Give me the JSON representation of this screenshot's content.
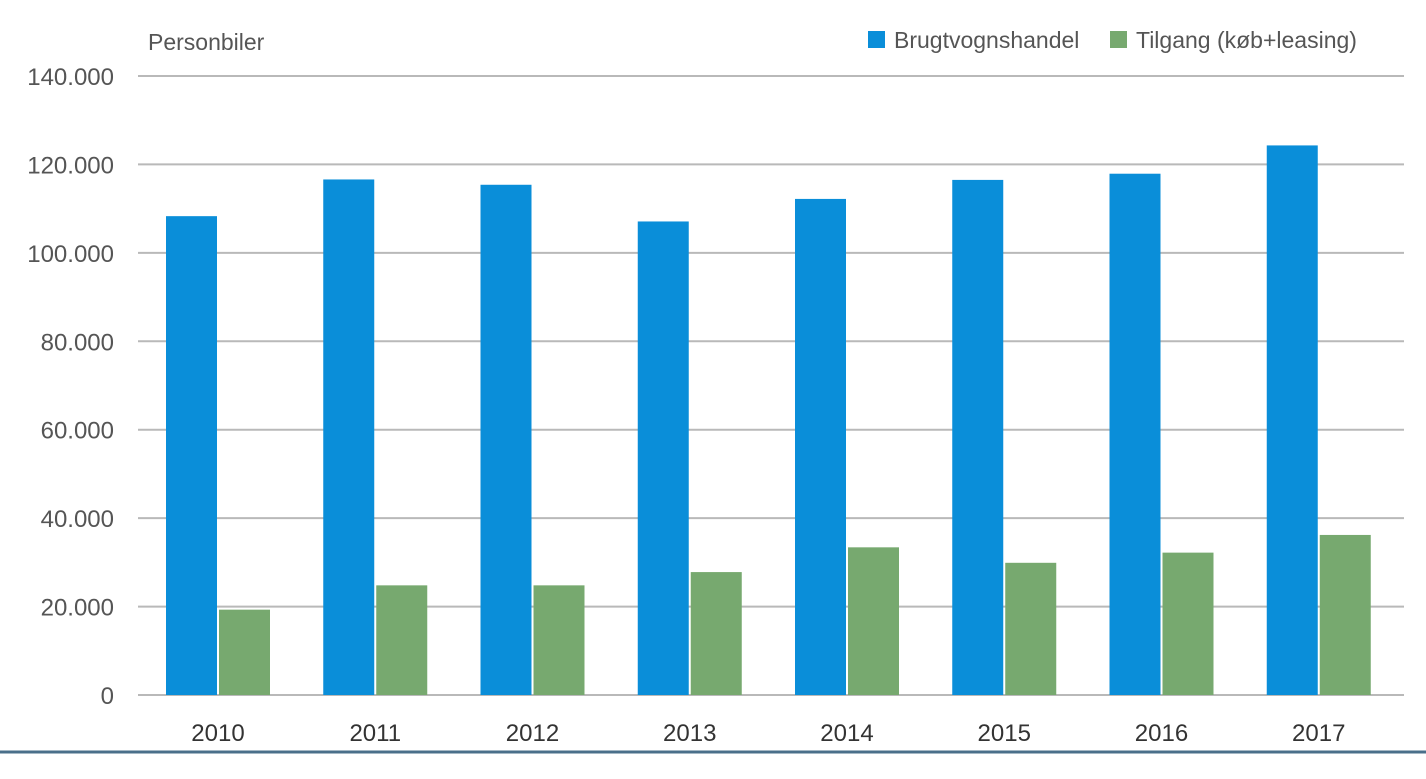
{
  "chart_data": {
    "type": "bar",
    "ylabel": "Personbiler",
    "categories": [
      "2010",
      "2011",
      "2012",
      "2013",
      "2014",
      "2015",
      "2016",
      "2017"
    ],
    "series": [
      {
        "name": "Brugtvognshandel",
        "color": "#0a8ed9",
        "values": [
          108300,
          116600,
          115400,
          107100,
          112200,
          116500,
          117900,
          124300
        ]
      },
      {
        "name": "Tilgang (køb+leasing)",
        "color": "#77a96f",
        "values": [
          19300,
          24800,
          24800,
          27800,
          33400,
          29900,
          32200,
          36200
        ]
      }
    ],
    "ylim": [
      0,
      140000
    ],
    "yticks": [
      0,
      20000,
      40000,
      60000,
      80000,
      100000,
      120000,
      140000
    ],
    "ytick_labels": [
      "0",
      "20.000",
      "40.000",
      "60.000",
      "80.000",
      "100.000",
      "120.000",
      "140.000"
    ],
    "grid": true,
    "legend_position": "top-right"
  },
  "colors": {
    "gridline": "#b9b9b9",
    "text": "#555555",
    "bottom_rule": "#4a6f8a"
  }
}
